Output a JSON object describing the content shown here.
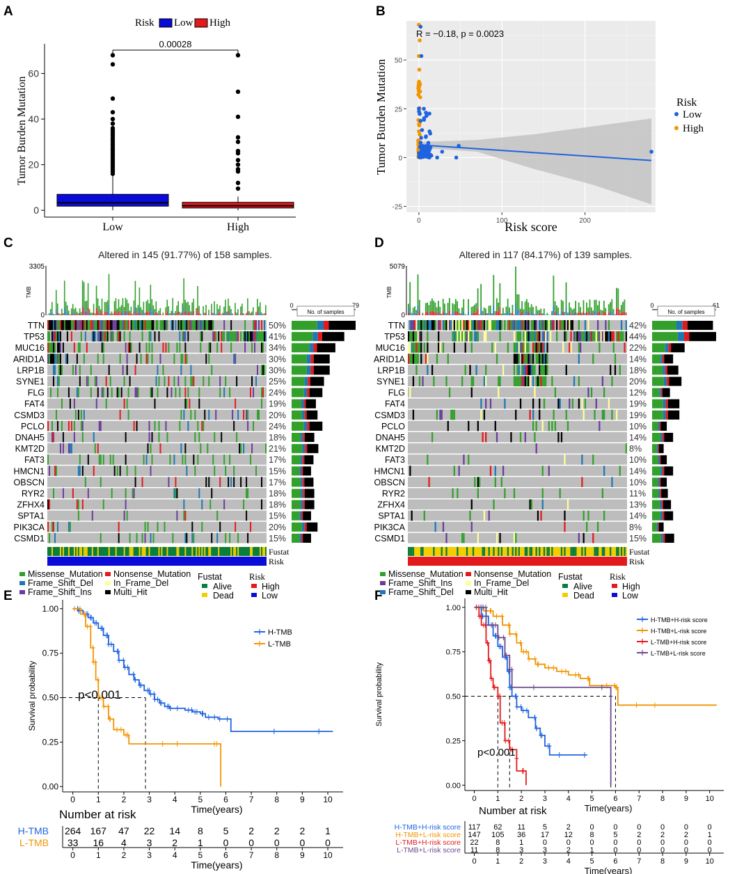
{
  "panel_labels": [
    "A",
    "B",
    "C",
    "D",
    "E",
    "F"
  ],
  "colors": {
    "low": "#0b0bd9",
    "high": "#e31a1c",
    "blue_pt": "#1f63e0",
    "orange_pt": "#f29400",
    "missense": "#33a02c",
    "nonsense": "#e31a1c",
    "fs_del": "#1f78b4",
    "fs_ins": "#6a3d9a",
    "in_frame_del": "#ffff99",
    "multi": "#000000",
    "alive": "#0b7d3c",
    "dead": "#f2cd00",
    "grey": "#bdbdbd",
    "tmb_h": "#1f63e0",
    "tmb_l": "#f29400",
    "combo_hl": "#f29400",
    "combo_lh": "#e31a1c",
    "combo_ll": "#6a4a8c",
    "combo_hh": "#1f63e0"
  },
  "chart_data": [
    {
      "panel": "A",
      "type": "box",
      "ylabel": "Tumor Burden Mutation",
      "ylim": [
        -3,
        73
      ],
      "yticks": [
        "0",
        "20",
        "40",
        "60"
      ],
      "legend": {
        "title": "Risk",
        "items": [
          "Low",
          "High"
        ]
      },
      "categories": [
        "Low",
        "High"
      ],
      "p_value": "0.00028",
      "boxes": [
        {
          "name": "Low",
          "q1": 1.8,
          "median": 3.3,
          "q3": 7.0,
          "whisker_low": 0,
          "whisker_high": 15,
          "outliers": [
            68,
            64,
            49,
            43,
            40,
            38,
            36,
            35,
            34,
            33,
            32,
            31,
            30,
            29,
            28,
            27,
            26,
            25,
            24,
            23,
            22,
            21,
            20,
            19,
            18,
            17,
            16
          ]
        },
        {
          "name": "High",
          "q1": 1.0,
          "median": 2.0,
          "q3": 3.5,
          "whisker_low": 0,
          "whisker_high": 6,
          "outliers": [
            68,
            52,
            41,
            32,
            30,
            26,
            25,
            22,
            20,
            18,
            17,
            12,
            9.5
          ]
        }
      ]
    },
    {
      "panel": "B",
      "type": "scatter",
      "xlabel": "Risk score",
      "ylabel": "Tumor Burden Mutation",
      "xlim": [
        -15,
        285
      ],
      "ylim": [
        -28,
        70
      ],
      "xticks": [
        "0",
        "100",
        "200"
      ],
      "yticks": [
        "-25",
        "0",
        "25",
        "50"
      ],
      "annotation": "R = −0.18, p = 0.0023",
      "legend": {
        "title": "Risk",
        "items": [
          "Low",
          "High"
        ]
      },
      "fit": {
        "x0": 0,
        "y0": 6.5,
        "x1": 280,
        "y1": -1.5
      },
      "ci": {
        "upper": [
          [
            0,
            8
          ],
          [
            70,
            9
          ],
          [
            140,
            12
          ],
          [
            210,
            16
          ],
          [
            280,
            20
          ]
        ],
        "lower": [
          [
            0,
            5
          ],
          [
            70,
            3
          ],
          [
            140,
            -6
          ],
          [
            210,
            -14
          ],
          [
            280,
            -24
          ]
        ]
      }
    },
    {
      "panel": "C",
      "type": "oncoplot",
      "title": "Altered in 145 (91.77%) of 158 samples.",
      "tmb_max": "3305",
      "tmb_label": "TMB",
      "nsamples_axis": [
        "0",
        "79"
      ],
      "nsamples_label": "No. of samples",
      "genes": [
        "TTN",
        "TP53",
        "MUC16",
        "ARID1A",
        "LRP1B",
        "SYNE1",
        "FLG",
        "FAT4",
        "CSMD3",
        "PCLO",
        "DNAH5",
        "KMT2D",
        "FAT3",
        "HMCN1",
        "OBSCN",
        "RYR2",
        "ZFHX4",
        "SPTA1",
        "PIK3CA",
        "CSMD1"
      ],
      "percents": [
        "50%",
        "41%",
        "34%",
        "30%",
        "30%",
        "25%",
        "24%",
        "19%",
        "20%",
        "24%",
        "18%",
        "21%",
        "17%",
        "15%",
        "17%",
        "18%",
        "18%",
        "15%",
        "20%",
        "15%"
      ],
      "counts": [
        79,
        65,
        54,
        47,
        47,
        40,
        38,
        30,
        32,
        38,
        28,
        33,
        27,
        24,
        27,
        28,
        28,
        24,
        32,
        24
      ],
      "track_labels": [
        "Fustat",
        "Risk"
      ],
      "legend": {
        "mutation": [
          "Missense_Mutation",
          "Nonsense_Mutation",
          "Frame_Shift_Del",
          "In_Frame_Del",
          "Frame_Shift_Ins",
          "Multi_Hit"
        ],
        "fustat_title": "Fustat",
        "fustat": [
          "Alive",
          "Dead"
        ],
        "risk_title": "Risk",
        "risk": [
          "High",
          "Low"
        ]
      }
    },
    {
      "panel": "D",
      "type": "oncoplot",
      "title": "Altered in 117 (84.17%) of 139 samples.",
      "tmb_max": "5079",
      "tmb_label": "TMB",
      "nsamples_axis": [
        "0",
        "61"
      ],
      "nsamples_label": "No. of samples",
      "genes": [
        "TTN",
        "TP53",
        "MUC16",
        "ARID1A",
        "LRP1B",
        "SYNE1",
        "FLG",
        "FAT4",
        "CSMD3",
        "PCLO",
        "DNAH5",
        "KMT2D",
        "FAT3",
        "HMCN1",
        "OBSCN",
        "RYR2",
        "ZFHX4",
        "SPTA1",
        "PIK3CA",
        "CSMD1"
      ],
      "percents": [
        "42%",
        "44%",
        "22%",
        "14%",
        "18%",
        "20%",
        "12%",
        "19%",
        "19%",
        "10%",
        "14%",
        "8%",
        "10%",
        "14%",
        "10%",
        "11%",
        "13%",
        "14%",
        "8%",
        "15%"
      ],
      "counts": [
        58,
        61,
        31,
        20,
        25,
        28,
        17,
        26,
        26,
        14,
        20,
        11,
        14,
        20,
        14,
        15,
        18,
        20,
        11,
        21
      ],
      "track_labels": [
        "Fustat",
        "Risk"
      ],
      "legend": {
        "mutation": [
          "Missense_Mutation",
          "Nonsense_Mutation",
          "Frame_Shift_Ins",
          "In_Frame_Del",
          "Frame_Shift_Del",
          "Multi_Hit"
        ],
        "fustat_title": "Fustat",
        "fustat": [
          "Alive",
          "Dead"
        ],
        "risk_title": "Risk",
        "risk": [
          "High",
          "Low"
        ]
      }
    },
    {
      "panel": "E",
      "type": "line",
      "xlabel": "Time(years)",
      "ylabel": "Survival probability",
      "xlim": [
        -0.4,
        10.6
      ],
      "ylim": [
        -0.03,
        1.05
      ],
      "xticks": [
        "0",
        "1",
        "2",
        "3",
        "4",
        "5",
        "6",
        "7",
        "8",
        "9",
        "10"
      ],
      "yticks": [
        "0.00",
        "0.25",
        "0.50",
        "0.75",
        "1.00"
      ],
      "pvalue": "p<0.001",
      "median_lines": [
        1.0,
        2.85
      ],
      "series": [
        {
          "name": "H-TMB",
          "points": [
            [
              0,
              1
            ],
            [
              0.2,
              0.99
            ],
            [
              0.4,
              0.97
            ],
            [
              0.6,
              0.95
            ],
            [
              0.8,
              0.92
            ],
            [
              1,
              0.89
            ],
            [
              1.2,
              0.85
            ],
            [
              1.4,
              0.8
            ],
            [
              1.6,
              0.76
            ],
            [
              1.8,
              0.71
            ],
            [
              2,
              0.67
            ],
            [
              2.2,
              0.63
            ],
            [
              2.4,
              0.6
            ],
            [
              2.6,
              0.57
            ],
            [
              2.8,
              0.54
            ],
            [
              3,
              0.52
            ],
            [
              3.2,
              0.49
            ],
            [
              3.4,
              0.47
            ],
            [
              3.6,
              0.45
            ],
            [
              3.8,
              0.44
            ],
            [
              4.4,
              0.43
            ],
            [
              4.7,
              0.42
            ],
            [
              5,
              0.41
            ],
            [
              5.2,
              0.39
            ],
            [
              5.7,
              0.38
            ],
            [
              6.2,
              0.31
            ],
            [
              10.2,
              0.31
            ]
          ]
        },
        {
          "name": "L-TMB",
          "points": [
            [
              0,
              1
            ],
            [
              0.3,
              0.97
            ],
            [
              0.5,
              0.9
            ],
            [
              0.7,
              0.78
            ],
            [
              0.8,
              0.7
            ],
            [
              0.9,
              0.6
            ],
            [
              1,
              0.5
            ],
            [
              1.2,
              0.45
            ],
            [
              1.4,
              0.38
            ],
            [
              1.6,
              0.32
            ],
            [
              2,
              0.29
            ],
            [
              2.2,
              0.24
            ],
            [
              4.4,
              0.24
            ],
            [
              5.8,
              0.24
            ],
            [
              5.8,
              0
            ]
          ]
        }
      ],
      "risk_table": {
        "title": "Number at risk",
        "times": [
          "0",
          "1",
          "2",
          "3",
          "4",
          "5",
          "6",
          "7",
          "8",
          "9",
          "10"
        ],
        "xlabel": "Time(years)",
        "rows": [
          {
            "name": "H-TMB",
            "values": [
              "264",
              "167",
              "47",
              "22",
              "14",
              "8",
              "5",
              "2",
              "2",
              "2",
              "1"
            ]
          },
          {
            "name": "L-TMB",
            "values": [
              "33",
              "16",
              "4",
              "3",
              "2",
              "1",
              "0",
              "0",
              "0",
              "0",
              "0"
            ]
          }
        ]
      }
    },
    {
      "panel": "F",
      "type": "line",
      "xlabel": "Time(years)",
      "ylabel": "Survival probability",
      "xlim": [
        -0.4,
        10.6
      ],
      "ylim": [
        -0.03,
        1.05
      ],
      "xticks": [
        "0",
        "1",
        "2",
        "3",
        "4",
        "5",
        "6",
        "7",
        "8",
        "9",
        "10"
      ],
      "yticks": [
        "0.00",
        "0.25",
        "0.50",
        "0.75",
        "1.00"
      ],
      "pvalue": "p<0.001",
      "median_lines": [
        1.0,
        1.5,
        5.8,
        6.0
      ],
      "series": [
        {
          "name": "H-TMB+H-risk score",
          "points": [
            [
              0,
              1
            ],
            [
              0.3,
              0.95
            ],
            [
              0.6,
              0.9
            ],
            [
              0.8,
              0.84
            ],
            [
              1,
              0.78
            ],
            [
              1.2,
              0.72
            ],
            [
              1.4,
              0.64
            ],
            [
              1.5,
              0.55
            ],
            [
              1.6,
              0.5
            ],
            [
              1.8,
              0.44
            ],
            [
              2,
              0.42
            ],
            [
              2.3,
              0.38
            ],
            [
              2.6,
              0.32
            ],
            [
              2.8,
              0.28
            ],
            [
              3,
              0.22
            ],
            [
              3.2,
              0.17
            ],
            [
              4.8,
              0.17
            ]
          ]
        },
        {
          "name": "H-TMB+L-risk score",
          "points": [
            [
              0,
              1
            ],
            [
              0.4,
              0.98
            ],
            [
              0.8,
              0.95
            ],
            [
              1.2,
              0.9
            ],
            [
              1.5,
              0.85
            ],
            [
              1.8,
              0.8
            ],
            [
              2,
              0.75
            ],
            [
              2.3,
              0.71
            ],
            [
              2.6,
              0.68
            ],
            [
              3,
              0.66
            ],
            [
              3.5,
              0.64
            ],
            [
              4,
              0.62
            ],
            [
              4.5,
              0.6
            ],
            [
              4.9,
              0.56
            ],
            [
              6,
              0.55
            ],
            [
              6.1,
              0.45
            ],
            [
              10.3,
              0.45
            ]
          ]
        },
        {
          "name": "L-TMB+H-risk score",
          "points": [
            [
              0,
              1
            ],
            [
              0.2,
              0.95
            ],
            [
              0.3,
              0.9
            ],
            [
              0.5,
              0.8
            ],
            [
              0.6,
              0.7
            ],
            [
              0.7,
              0.6
            ],
            [
              0.8,
              0.55
            ],
            [
              1,
              0.5
            ],
            [
              1.1,
              0.35
            ],
            [
              1.3,
              0.25
            ],
            [
              1.5,
              0.2
            ],
            [
              1.8,
              0.15
            ],
            [
              1.8,
              0.08
            ],
            [
              2.2,
              0.08
            ],
            [
              2.2,
              0
            ]
          ]
        },
        {
          "name": "L-TMB+L-risk score",
          "points": [
            [
              0,
              1
            ],
            [
              0.5,
              0.9
            ],
            [
              1,
              0.83
            ],
            [
              1.3,
              0.73
            ],
            [
              1.5,
              0.65
            ],
            [
              1.6,
              0.55
            ],
            [
              5.8,
              0.55
            ],
            [
              5.8,
              0
            ]
          ]
        }
      ],
      "risk_table": {
        "title": "Number at risk",
        "times": [
          "0",
          "1",
          "2",
          "3",
          "4",
          "5",
          "6",
          "7",
          "8",
          "9",
          "10"
        ],
        "xlabel": "Time(years)",
        "rows": [
          {
            "name": "H-TMB+H-risk score",
            "values": [
              "117",
              "62",
              "11",
              "5",
              "2",
              "0",
              "0",
              "0",
              "0",
              "0",
              "0"
            ]
          },
          {
            "name": "H-TMB+L-risk score",
            "values": [
              "147",
              "105",
              "36",
              "17",
              "12",
              "8",
              "5",
              "2",
              "2",
              "2",
              "1"
            ]
          },
          {
            "name": "L-TMB+H-risk score",
            "values": [
              "22",
              "8",
              "1",
              "0",
              "0",
              "0",
              "0",
              "0",
              "0",
              "0",
              "0"
            ]
          },
          {
            "name": "L-TMB+L-risk score",
            "values": [
              "11",
              "8",
              "3",
              "3",
              "2",
              "1",
              "0",
              "0",
              "0",
              "0",
              "0"
            ]
          }
        ]
      }
    }
  ]
}
